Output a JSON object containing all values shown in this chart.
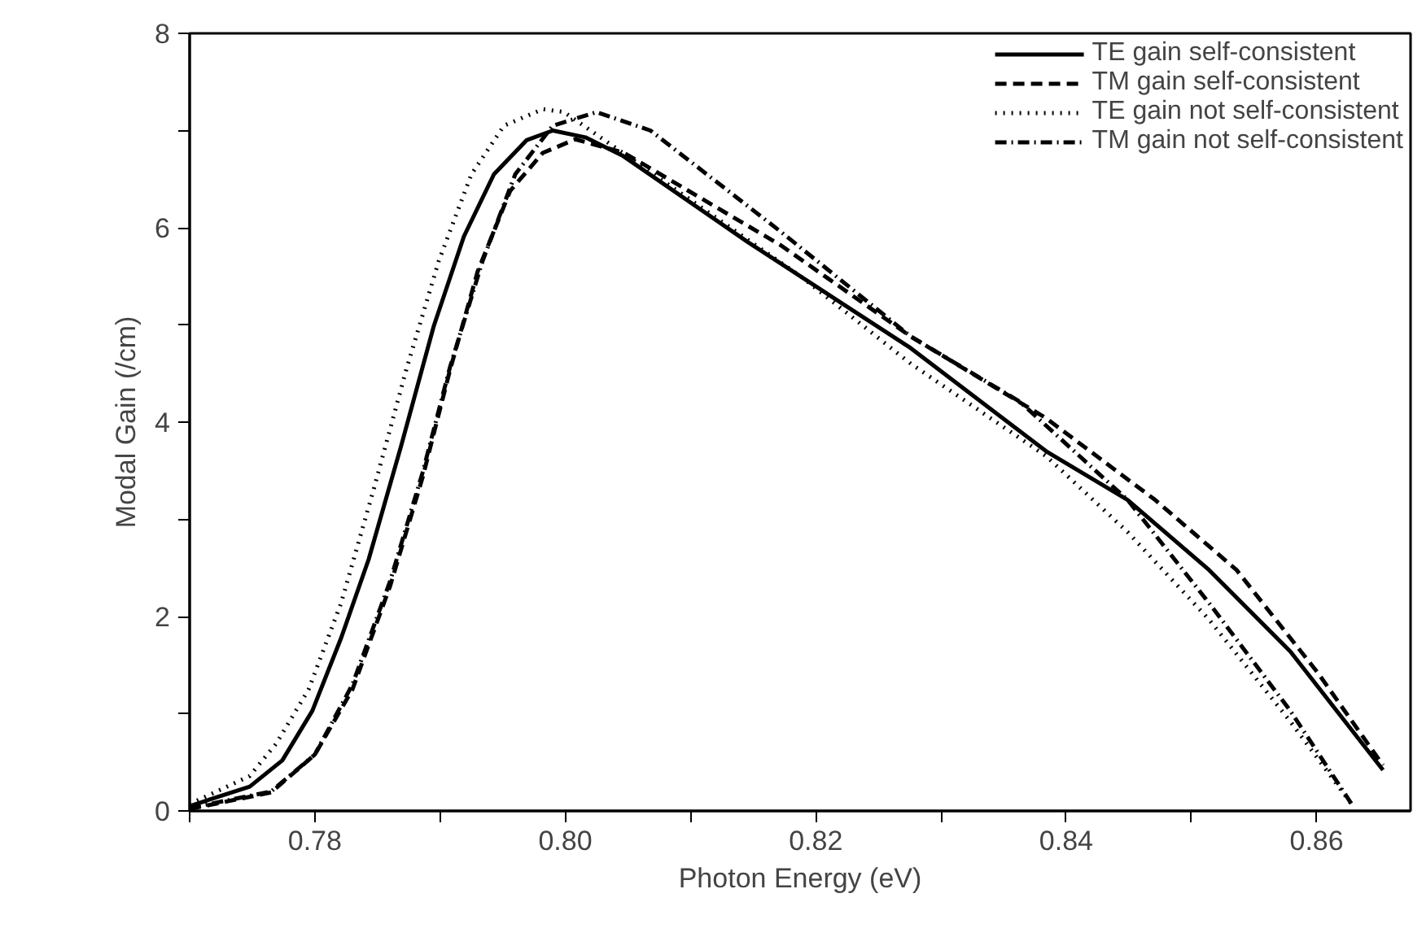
{
  "chart_data": {
    "type": "line",
    "xlabel": "Photon Energy (eV)",
    "ylabel": "Modal Gain (/cm)",
    "xlim": [
      0.77,
      0.8675
    ],
    "ylim": [
      0,
      8
    ],
    "xticks": [
      {
        "value": 0.77,
        "label": null
      },
      0.78,
      {
        "value": 0.79,
        "label": null
      },
      {
        "value": 0.8,
        "label": "0.80"
      },
      {
        "value": 0.81,
        "label": null
      },
      0.82,
      {
        "value": 0.83,
        "label": null
      },
      0.84,
      {
        "value": 0.85,
        "label": null
      },
      0.86
    ],
    "yticks": [
      0,
      {
        "value": 1,
        "label": null
      },
      2,
      {
        "value": 3,
        "label": null
      },
      4,
      {
        "value": 5,
        "label": null
      },
      6,
      {
        "value": 7,
        "label": null
      },
      8
    ],
    "grid": false,
    "legend": "top right",
    "series": [
      {
        "name": "TE gain self-consistent",
        "color": "#000000",
        "line_style": "solid",
        "x": [
          0.77,
          0.7748,
          0.7774,
          0.7798,
          0.7821,
          0.7843,
          0.7869,
          0.7895,
          0.7919,
          0.7943,
          0.7969,
          0.799,
          0.8016,
          0.8046,
          0.8146,
          0.8276,
          0.8384,
          0.8449,
          0.8514,
          0.8579,
          0.8653
        ],
        "values": [
          0.05,
          0.25,
          0.52,
          1.03,
          1.78,
          2.59,
          3.76,
          4.99,
          5.91,
          6.55,
          6.9,
          7.0,
          6.93,
          6.74,
          5.85,
          4.76,
          3.7,
          3.2,
          2.48,
          1.64,
          0.42
        ]
      },
      {
        "name": "TM gain self-consistent",
        "color": "#000000",
        "line_style": "dashed",
        "x": [
          0.77,
          0.7765,
          0.78,
          0.783,
          0.786,
          0.7886,
          0.7908,
          0.793,
          0.7956,
          0.7982,
          0.8008,
          0.8047,
          0.8172,
          0.8276,
          0.8384,
          0.8471,
          0.8536,
          0.8601,
          0.8653
        ],
        "values": [
          0.02,
          0.19,
          0.58,
          1.25,
          2.31,
          3.43,
          4.54,
          5.55,
          6.38,
          6.77,
          6.91,
          6.77,
          5.82,
          4.88,
          4.04,
          3.2,
          2.48,
          1.42,
          0.47
        ]
      },
      {
        "name": "TE gain not self-consistent",
        "color": "#000000",
        "line_style": "dotted",
        "x": [
          0.77,
          0.7748,
          0.7769,
          0.7795,
          0.7821,
          0.7847,
          0.7873,
          0.7899,
          0.7925,
          0.7951,
          0.7982,
          0.7999,
          0.8189,
          0.8276,
          0.8384,
          0.8449,
          0.8514,
          0.8579,
          0.8629
        ],
        "values": [
          0.07,
          0.36,
          0.69,
          1.25,
          2.14,
          3.31,
          4.54,
          5.66,
          6.55,
          7.05,
          7.22,
          7.19,
          5.49,
          4.6,
          3.65,
          2.87,
          1.97,
          0.92,
          0.05
        ]
      },
      {
        "name": "TM gain not self-consistent",
        "color": "#000000",
        "line_style": "dashdot",
        "x": [
          0.77,
          0.7765,
          0.78,
          0.783,
          0.786,
          0.7886,
          0.7908,
          0.7934,
          0.796,
          0.799,
          0.8025,
          0.8068,
          0.8172,
          0.8276,
          0.8363,
          0.8449,
          0.8514,
          0.8579,
          0.8629
        ],
        "values": [
          0.03,
          0.2,
          0.58,
          1.3,
          2.36,
          3.48,
          4.57,
          5.66,
          6.55,
          7.05,
          7.19,
          7.0,
          5.96,
          4.88,
          4.21,
          3.2,
          2.14,
          1.03,
          0.05
        ]
      }
    ]
  }
}
